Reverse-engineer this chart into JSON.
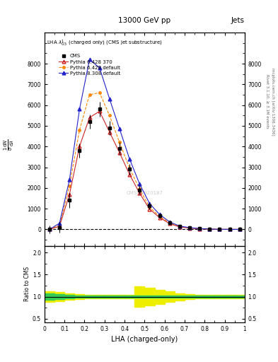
{
  "title_top": "13000 GeV pp",
  "title_right": "Jets",
  "annotation": "LHA $\\lambda^{1}_{0.5}$ (charged only) (CMS jet substructure)",
  "xlabel": "LHA (charged-only)",
  "ylabel_ratio": "Ratio to CMS",
  "right_label1": "Rivet 3.1.10, ≥ 3.1M events",
  "right_label2": "mcplots.cern.ch [arXiv:1306.3436]",
  "watermark": "CMS_I1920187",
  "xbins": [
    0.0,
    0.05,
    0.1,
    0.15,
    0.2,
    0.25,
    0.3,
    0.35,
    0.4,
    0.45,
    0.5,
    0.55,
    0.6,
    0.65,
    0.7,
    0.75,
    0.8,
    0.85,
    0.9,
    0.95,
    1.0
  ],
  "x_centers": [
    0.025,
    0.075,
    0.125,
    0.175,
    0.225,
    0.275,
    0.325,
    0.375,
    0.425,
    0.475,
    0.525,
    0.575,
    0.625,
    0.675,
    0.725,
    0.775,
    0.825,
    0.875,
    0.925,
    0.975
  ],
  "cms_data": [
    0,
    100,
    1400,
    3800,
    5200,
    5800,
    4900,
    3900,
    2900,
    1900,
    1150,
    650,
    320,
    140,
    75,
    38,
    14,
    5,
    2,
    0.5
  ],
  "cms_err": [
    200,
    250,
    350,
    350,
    350,
    350,
    350,
    300,
    270,
    220,
    170,
    130,
    90,
    55,
    35,
    18,
    9,
    4,
    2,
    1
  ],
  "py6_370": [
    0,
    150,
    1700,
    4000,
    5400,
    5700,
    4700,
    3700,
    2650,
    1750,
    980,
    570,
    280,
    120,
    65,
    32,
    11,
    3.5,
    1,
    0.3
  ],
  "py6_def": [
    0,
    200,
    2100,
    4800,
    6500,
    6600,
    5500,
    4200,
    2950,
    1950,
    1080,
    630,
    310,
    135,
    70,
    35,
    12,
    4,
    1.5,
    0.5
  ],
  "py8_def": [
    0,
    300,
    2400,
    5800,
    8200,
    7800,
    6300,
    4850,
    3400,
    2200,
    1250,
    720,
    365,
    160,
    85,
    42,
    16,
    5.5,
    1.8,
    0.7
  ],
  "ratio_green_lo": [
    0.93,
    0.94,
    0.96,
    0.97,
    0.975,
    0.975,
    0.975,
    0.975,
    0.975,
    0.975,
    0.975,
    0.975,
    0.975,
    0.975,
    0.975,
    0.975,
    0.975,
    0.975,
    0.975,
    0.975
  ],
  "ratio_green_hi": [
    1.07,
    1.06,
    1.04,
    1.03,
    1.025,
    1.025,
    1.025,
    1.025,
    1.025,
    1.025,
    1.025,
    1.025,
    1.025,
    1.025,
    1.025,
    1.025,
    1.025,
    1.025,
    1.025,
    1.025
  ],
  "ratio_yellow_lo": [
    0.88,
    0.9,
    0.93,
    0.95,
    0.96,
    0.96,
    0.96,
    0.96,
    0.96,
    0.76,
    0.8,
    0.84,
    0.88,
    0.92,
    0.95,
    0.96,
    0.96,
    0.96,
    0.96,
    0.96
  ],
  "ratio_yellow_hi": [
    1.12,
    1.1,
    1.07,
    1.05,
    1.04,
    1.04,
    1.04,
    1.04,
    1.04,
    1.24,
    1.2,
    1.16,
    1.12,
    1.08,
    1.05,
    1.04,
    1.04,
    1.04,
    1.04,
    1.04
  ],
  "color_cms": "#000000",
  "color_py6_370": "#cc2222",
  "color_py6_def": "#ff8800",
  "color_py8_def": "#2222cc",
  "color_green": "#33cc55",
  "color_yellow": "#eeee00",
  "ylim_main": [
    -800,
    9500
  ],
  "ylim_ratio": [
    0.42,
    2.15
  ],
  "xlim": [
    0.0,
    1.0
  ],
  "yticks_main": [
    0,
    1000,
    2000,
    3000,
    4000,
    5000,
    6000,
    7000,
    8000
  ],
  "ytick_labels_main": [
    "0",
    "1000",
    "2000",
    "3000",
    "4000",
    "5000",
    "6000",
    "7000",
    "8000"
  ],
  "yticks_ratio": [
    0.5,
    1.0,
    1.5,
    2.0
  ],
  "xticks": [
    0.0,
    0.1,
    0.2,
    0.3,
    0.4,
    0.5,
    0.6,
    0.7,
    0.8,
    0.9,
    1.0
  ]
}
